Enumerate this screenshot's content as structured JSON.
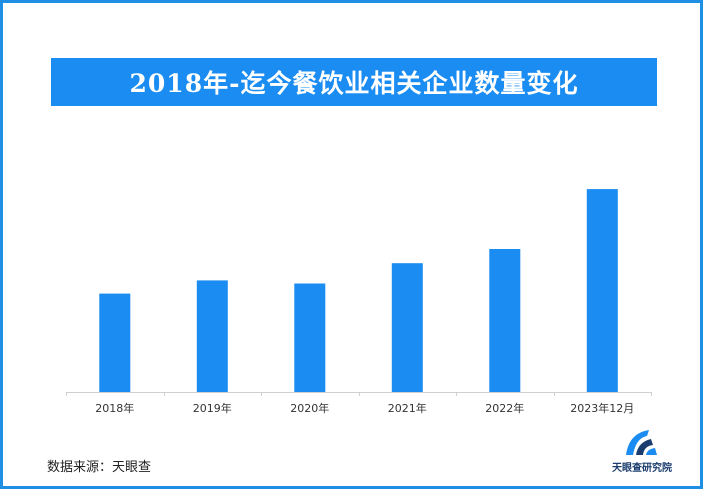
{
  "title": "2018年-迄今餐饮业相关企业数量变化",
  "source": "数据来源：天眼查",
  "logo": {
    "name": "天眼查研究院",
    "icon": "tianyancha-logo-icon"
  },
  "colors": {
    "bar": "#1a8cf2",
    "banner": "#1a8cf2",
    "frame": "#1f8fe6",
    "axis": "#cfcfcf"
  },
  "chart_data": {
    "type": "bar",
    "categories": [
      "2018年",
      "2019年",
      "2020年",
      "2021年",
      "2022年",
      "2023年12月"
    ],
    "values": [
      97,
      110,
      107,
      127,
      141,
      200
    ],
    "ylim": [
      0,
      210
    ],
    "grid": false,
    "legend": "none",
    "y_axis_labels": false
  }
}
